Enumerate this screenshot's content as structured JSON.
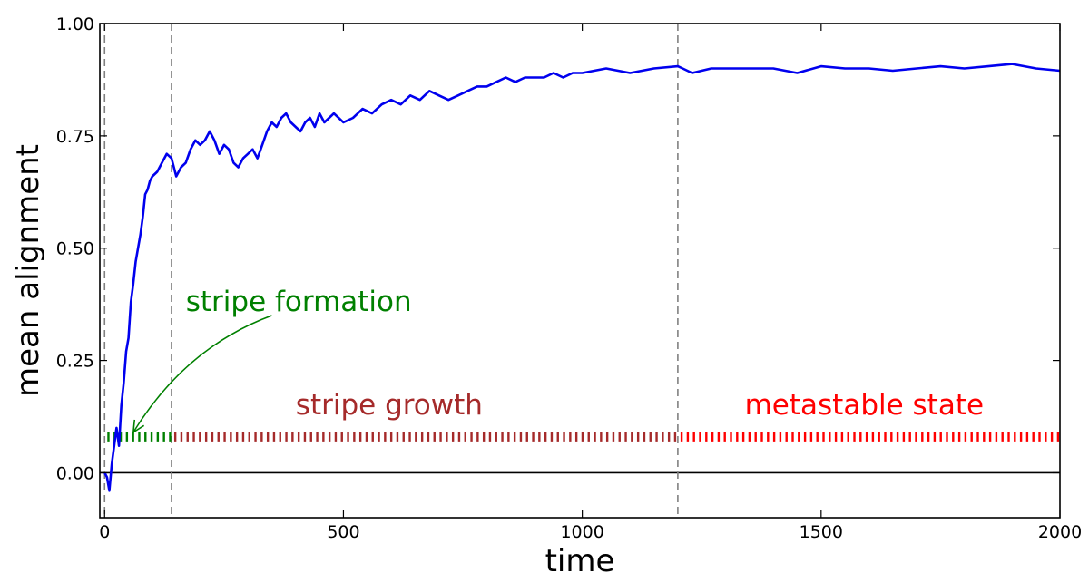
{
  "chart_data": {
    "type": "line",
    "title": "",
    "xlabel": "time",
    "ylabel": "mean alignment",
    "xlim": [
      -10,
      2000
    ],
    "ylim": [
      -0.1,
      1.0
    ],
    "x_ticks": [
      0,
      500,
      1000,
      1500,
      2000
    ],
    "x_tick_labels": [
      "0",
      "500",
      "1000",
      "1500",
      "2000"
    ],
    "y_ticks": [
      0.0,
      0.25,
      0.5,
      0.75,
      1.0
    ],
    "y_tick_labels": [
      "0.00",
      "0.25",
      "0.50",
      "0.75",
      "1.00"
    ],
    "grid": false,
    "legend": "none",
    "series": [
      {
        "color": "#0000ee",
        "x": [
          0,
          5,
          10,
          15,
          20,
          25,
          30,
          35,
          40,
          45,
          50,
          55,
          60,
          65,
          70,
          75,
          80,
          85,
          90,
          95,
          100,
          110,
          120,
          130,
          140,
          150,
          160,
          170,
          180,
          190,
          200,
          210,
          220,
          230,
          240,
          250,
          260,
          270,
          280,
          290,
          300,
          310,
          320,
          330,
          340,
          350,
          360,
          370,
          380,
          390,
          400,
          410,
          420,
          430,
          440,
          450,
          460,
          470,
          480,
          490,
          500,
          520,
          540,
          560,
          580,
          600,
          620,
          640,
          660,
          680,
          700,
          720,
          740,
          760,
          780,
          800,
          820,
          840,
          860,
          880,
          900,
          920,
          940,
          960,
          980,
          1000,
          1050,
          1100,
          1150,
          1200,
          1210,
          1230,
          1250,
          1270,
          1300,
          1350,
          1400,
          1450,
          1500,
          1550,
          1600,
          1650,
          1700,
          1750,
          1800,
          1850,
          1900,
          1950,
          2000
        ],
        "y": [
          0.0,
          -0.01,
          -0.04,
          0.02,
          0.06,
          0.1,
          0.06,
          0.15,
          0.2,
          0.27,
          0.3,
          0.38,
          0.42,
          0.47,
          0.5,
          0.53,
          0.57,
          0.62,
          0.63,
          0.65,
          0.66,
          0.67,
          0.69,
          0.71,
          0.7,
          0.66,
          0.68,
          0.69,
          0.72,
          0.74,
          0.73,
          0.74,
          0.76,
          0.74,
          0.71,
          0.73,
          0.72,
          0.69,
          0.68,
          0.7,
          0.71,
          0.72,
          0.7,
          0.73,
          0.76,
          0.78,
          0.77,
          0.79,
          0.8,
          0.78,
          0.77,
          0.76,
          0.78,
          0.79,
          0.77,
          0.8,
          0.78,
          0.79,
          0.8,
          0.79,
          0.78,
          0.79,
          0.81,
          0.8,
          0.82,
          0.83,
          0.82,
          0.84,
          0.83,
          0.85,
          0.84,
          0.83,
          0.84,
          0.85,
          0.86,
          0.86,
          0.87,
          0.88,
          0.87,
          0.88,
          0.88,
          0.88,
          0.89,
          0.88,
          0.89,
          0.89,
          0.9,
          0.89,
          0.9,
          0.905,
          0.9,
          0.89,
          0.895,
          0.9,
          0.9,
          0.9,
          0.9,
          0.89,
          0.905,
          0.9,
          0.9,
          0.895,
          0.9,
          0.905,
          0.9,
          0.905,
          0.91,
          0.9,
          0.895
        ]
      }
    ],
    "vertical_lines_x": [
      0,
      140,
      1200
    ],
    "horizontal_line_y": 0.0,
    "phases": [
      {
        "label": "stripe formation",
        "color": "#008000",
        "x_start": 0,
        "x_end": 140,
        "y": 0.08
      },
      {
        "label": "stripe growth",
        "color": "#a52a2a",
        "x_start": 140,
        "x_end": 1200,
        "y": 0.08
      },
      {
        "label": "metastable state",
        "color": "#ff0000",
        "x_start": 1200,
        "x_end": 2000,
        "y": 0.08
      }
    ],
    "annotation_arrow": {
      "from_x": 350,
      "from_y": 0.35,
      "to_x": 60,
      "to_y": 0.09,
      "color": "#008000"
    }
  }
}
